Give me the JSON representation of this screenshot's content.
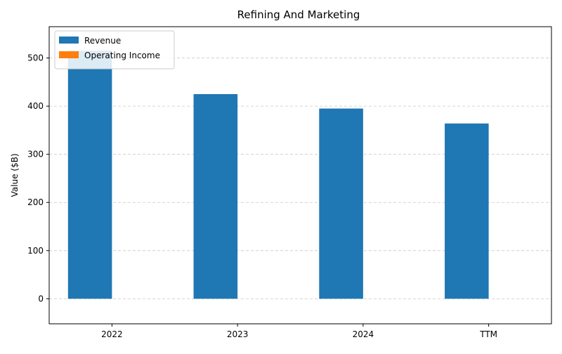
{
  "chart_data": {
    "type": "bar",
    "title": "Refining And Marketing",
    "xlabel": "",
    "ylabel": "Value ($B)",
    "categories": [
      "2022",
      "2023",
      "2024",
      "TTM"
    ],
    "series": [
      {
        "name": "Revenue",
        "color": "#1f77b4",
        "values": [
          515,
          425,
          395,
          364
        ]
      },
      {
        "name": "Operating Income",
        "color": "#ff7f0e",
        "values": [
          0,
          0,
          0,
          0
        ]
      }
    ],
    "ylim": [
      -52,
      565
    ],
    "yticks": [
      0,
      100,
      200,
      300,
      400,
      500
    ],
    "grid": {
      "y": true,
      "x": false,
      "style": "dashed"
    },
    "legend": "upper-left"
  }
}
